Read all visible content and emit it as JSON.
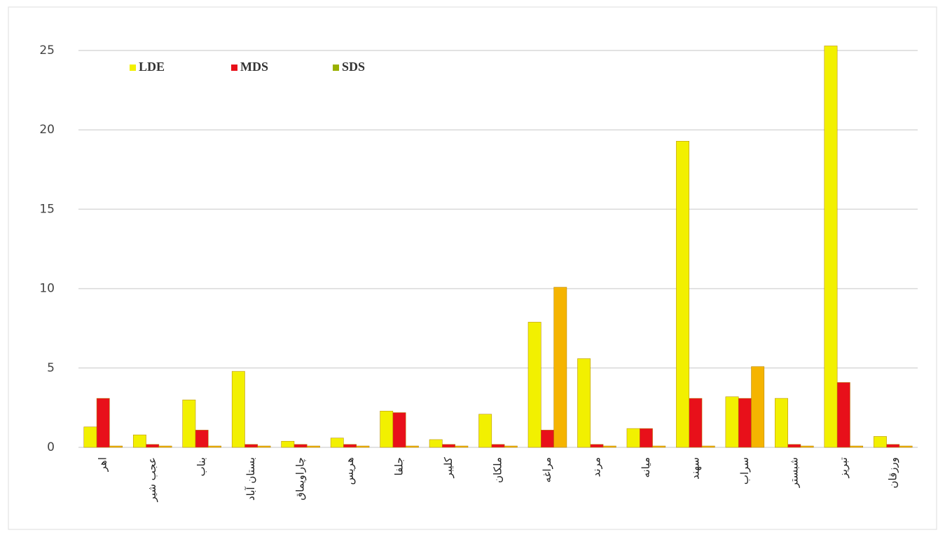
{
  "chart_data": {
    "type": "bar",
    "categories": [
      "اهر",
      "عجب شیر",
      "بناب",
      "بستان آباد",
      "چاراویماق",
      "هریس",
      "جلفا",
      "کلیبر",
      "ملکان",
      "مراغه",
      "مرند",
      "میانه",
      "سهند",
      "سراب",
      "شبستر",
      "تبریز",
      "ورزقان"
    ],
    "series": [
      {
        "name": "LDE",
        "color": "#f2f000",
        "values": [
          1.2,
          0.7,
          2.9,
          4.7,
          0.3,
          0.5,
          2.2,
          0.4,
          2.0,
          7.8,
          5.5,
          1.1,
          19.2,
          3.1,
          3.0,
          25.2,
          0.6
        ]
      },
      {
        "name": "MDS",
        "color": "#e8101a",
        "values": [
          3.0,
          0.1,
          1.0,
          0.1,
          0.1,
          0.1,
          2.1,
          0.1,
          0.1,
          1.0,
          0.1,
          1.1,
          3.0,
          3.0,
          0.1,
          4.0,
          0.1
        ]
      },
      {
        "name": "SDS",
        "color": "#f5b400",
        "values": [
          0,
          0,
          0,
          0,
          0,
          0,
          0,
          0,
          0,
          10,
          0,
          0,
          0,
          5,
          0,
          0,
          0
        ]
      }
    ],
    "ylim": [
      0,
      25
    ],
    "yticks": [
      0,
      5,
      10,
      15,
      20,
      25
    ],
    "grid": true,
    "legend": "top-left"
  }
}
